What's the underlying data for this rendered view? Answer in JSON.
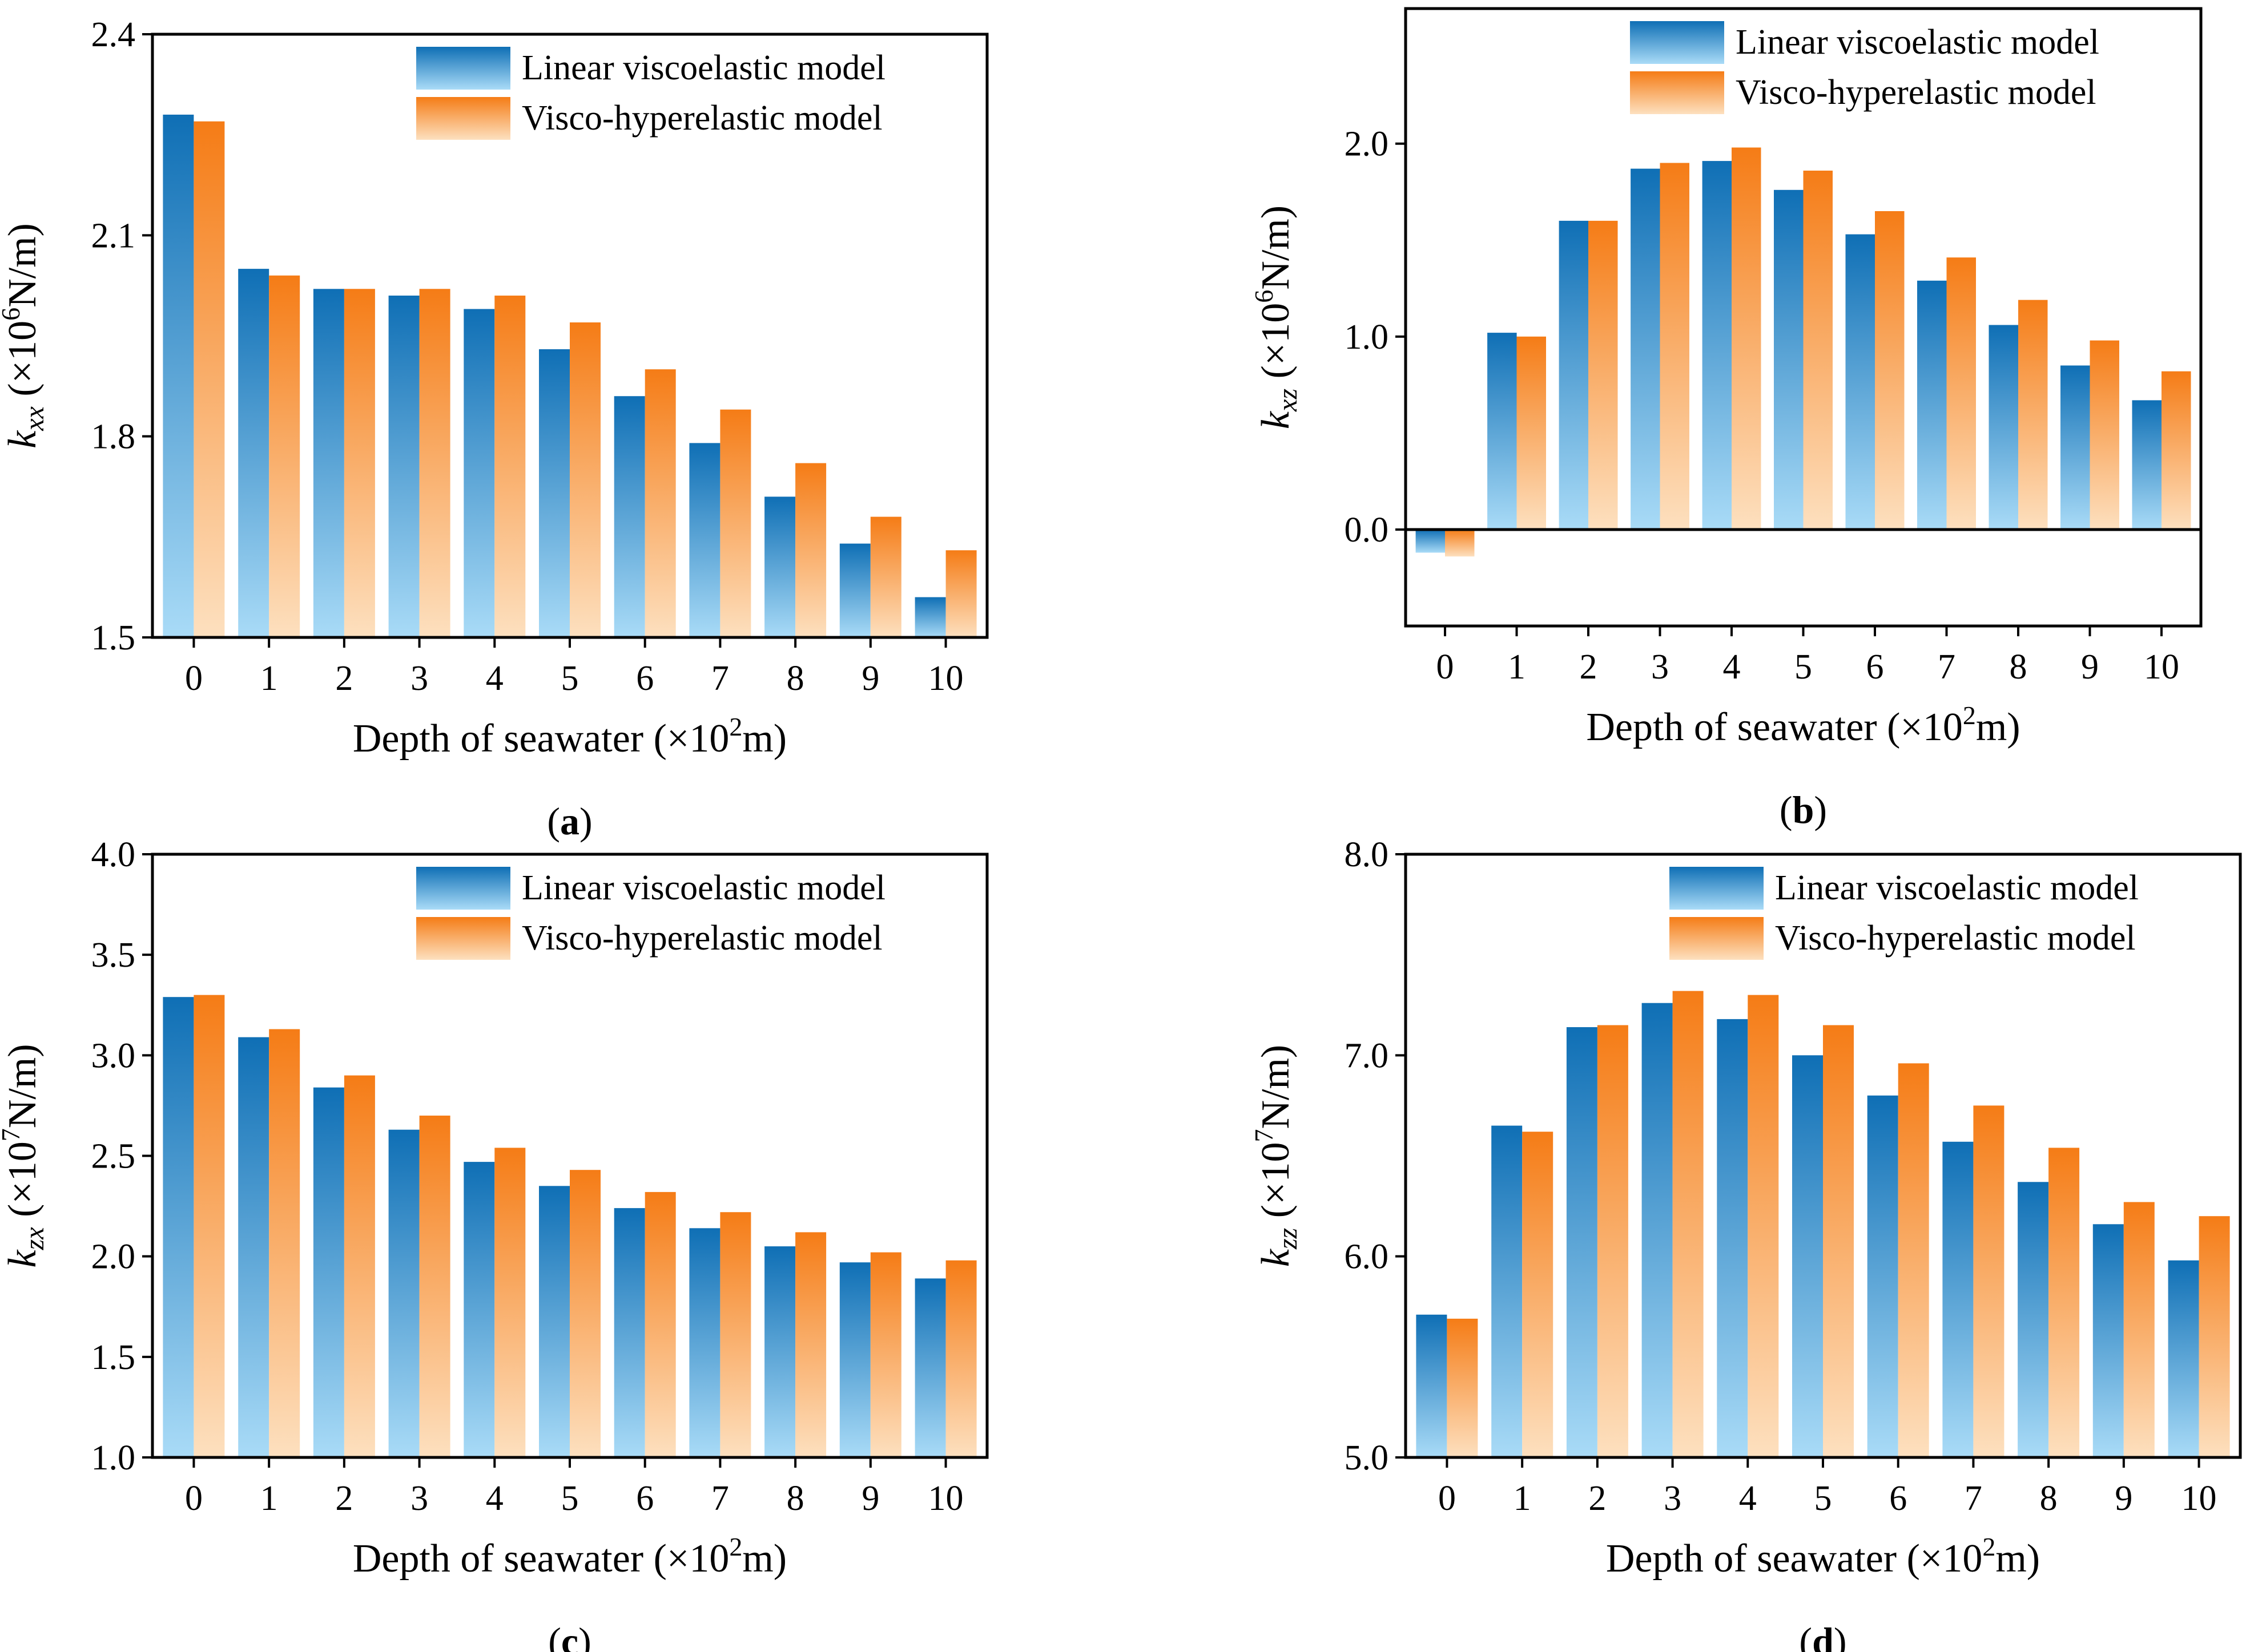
{
  "figure": {
    "legend": {
      "linear_label": "Linear viscoelastic model",
      "visco_label": "Visco-hyperelastic model"
    },
    "colors": {
      "linear_top": "#0f6fb5",
      "linear_bottom": "#a9dbf7",
      "visco_top": "#f57c16",
      "visco_bottom": "#fde0bf",
      "frame": "#000000"
    }
  },
  "chart_data": [
    {
      "panel": "a",
      "type": "bar",
      "caption_letter": "a",
      "categories": [
        "0",
        "1",
        "2",
        "3",
        "4",
        "5",
        "6",
        "7",
        "8",
        "9",
        "10"
      ],
      "series": [
        {
          "name": "Linear viscoelastic model",
          "values": [
            2.28,
            2.05,
            2.02,
            2.01,
            1.99,
            1.93,
            1.86,
            1.79,
            1.71,
            1.64,
            1.56
          ]
        },
        {
          "name": "Visco-hyperelastic model",
          "values": [
            2.27,
            2.04,
            2.02,
            2.02,
            2.01,
            1.97,
            1.9,
            1.84,
            1.76,
            1.68,
            1.63
          ]
        }
      ],
      "y_axis": {
        "base": "k",
        "sub": "xx",
        "unit_prefix": " (×10",
        "unit_exp": "6",
        "unit_suffix": "N/m)",
        "ylim": [
          1.5,
          2.4
        ],
        "ticks": [
          1.5,
          1.8,
          2.1,
          2.4
        ],
        "tick_labels": [
          "1.5",
          "1.8",
          "2.1",
          "2.4"
        ]
      },
      "x_axis": {
        "prefix": "Depth of seawater (×10",
        "exp": "2",
        "suffix": "m)"
      },
      "legend_position": "top-right"
    },
    {
      "panel": "b",
      "type": "bar",
      "caption_letter": "b",
      "categories": [
        "0",
        "1",
        "2",
        "3",
        "4",
        "5",
        "6",
        "7",
        "8",
        "9",
        "10"
      ],
      "series": [
        {
          "name": "Linear viscoelastic model",
          "values": [
            -0.12,
            1.02,
            1.6,
            1.87,
            1.91,
            1.76,
            1.53,
            1.29,
            1.06,
            0.85,
            0.67
          ]
        },
        {
          "name": "Visco-hyperelastic model",
          "values": [
            -0.14,
            1.0,
            1.6,
            1.9,
            1.98,
            1.86,
            1.65,
            1.41,
            1.19,
            0.98,
            0.82
          ]
        }
      ],
      "y_axis": {
        "base": "k",
        "sub": "xz",
        "unit_prefix": " (×10",
        "unit_exp": "6",
        "unit_suffix": "N/m)",
        "ylim": [
          -0.5,
          2.7
        ],
        "ticks": [
          0.0,
          1.0,
          2.0
        ],
        "tick_labels": [
          "0.0",
          "1.0",
          "2.0"
        ]
      },
      "x_axis": {
        "prefix": "Depth of seawater (×10",
        "exp": "2",
        "suffix": "m)"
      },
      "legend_position": "top-right",
      "zero_line": true
    },
    {
      "panel": "c",
      "type": "bar",
      "caption_letter": "c",
      "categories": [
        "0",
        "1",
        "2",
        "3",
        "4",
        "5",
        "6",
        "7",
        "8",
        "9",
        "10"
      ],
      "series": [
        {
          "name": "Linear viscoelastic model",
          "values": [
            3.29,
            3.09,
            2.84,
            2.63,
            2.47,
            2.35,
            2.24,
            2.14,
            2.05,
            1.97,
            1.89
          ]
        },
        {
          "name": "Visco-hyperelastic model",
          "values": [
            3.3,
            3.13,
            2.9,
            2.7,
            2.54,
            2.43,
            2.32,
            2.22,
            2.12,
            2.02,
            1.98
          ]
        }
      ],
      "y_axis": {
        "base": "k",
        "sub": "zx",
        "unit_prefix": " (×10",
        "unit_exp": "7",
        "unit_suffix": "N/m)",
        "ylim": [
          1.0,
          4.0
        ],
        "ticks": [
          1.0,
          1.5,
          2.0,
          2.5,
          3.0,
          3.5,
          4.0
        ],
        "tick_labels": [
          "1.0",
          "1.5",
          "2.0",
          "2.5",
          "3.0",
          "3.5",
          "4.0"
        ]
      },
      "x_axis": {
        "prefix": "Depth of seawater (×10",
        "exp": "2",
        "suffix": "m)"
      },
      "legend_position": "top-right"
    },
    {
      "panel": "d",
      "type": "bar",
      "caption_letter": "d",
      "categories": [
        "0",
        "1",
        "2",
        "3",
        "4",
        "5",
        "6",
        "7",
        "8",
        "9",
        "10"
      ],
      "series": [
        {
          "name": "Linear viscoelastic model",
          "values": [
            5.71,
            6.65,
            7.14,
            7.26,
            7.18,
            7.0,
            6.8,
            6.57,
            6.37,
            6.16,
            5.98
          ]
        },
        {
          "name": "Visco-hyperelastic model",
          "values": [
            5.69,
            6.62,
            7.15,
            7.32,
            7.3,
            7.15,
            6.96,
            6.75,
            6.54,
            6.27,
            6.2
          ]
        }
      ],
      "y_axis": {
        "base": "k",
        "sub": "zz",
        "unit_prefix": " (×10",
        "unit_exp": "7",
        "unit_suffix": "N/m)",
        "ylim": [
          5.0,
          8.0
        ],
        "ticks": [
          5.0,
          6.0,
          7.0,
          8.0
        ],
        "tick_labels": [
          "5.0",
          "6.0",
          "7.0",
          "8.0"
        ]
      },
      "x_axis": {
        "prefix": "Depth of seawater (×10",
        "exp": "2",
        "suffix": "m)"
      },
      "legend_position": "top-right"
    }
  ]
}
